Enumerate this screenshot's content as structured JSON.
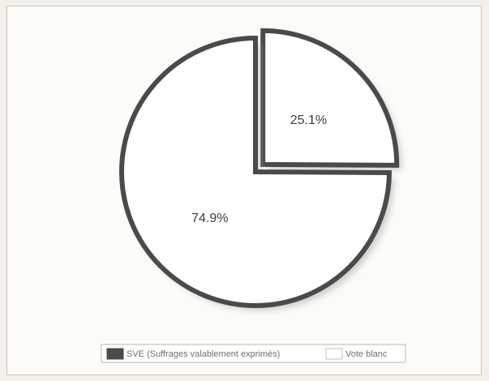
{
  "chart_data": {
    "type": "pie",
    "title": "",
    "slices": [
      {
        "label": "SVE (Suffrages valablement exprimés)",
        "value": 74.9,
        "display": "74.9%",
        "color": "#ffffff"
      },
      {
        "label": "Vote blanc",
        "value": 25.1,
        "display": "25.1%",
        "color": "#ffffff"
      }
    ],
    "exploded_slice": "Vote blanc",
    "slice_outline_color": "#4a4a4a",
    "shadow_color": "#a8a8a8",
    "legend": {
      "placement": "bottom-center",
      "entries": [
        {
          "label": "SVE (Suffrages valablement exprimés)",
          "swatch": "#4a4a4a"
        },
        {
          "label": "Vote blanc",
          "swatch": "#ffffff"
        }
      ]
    }
  }
}
